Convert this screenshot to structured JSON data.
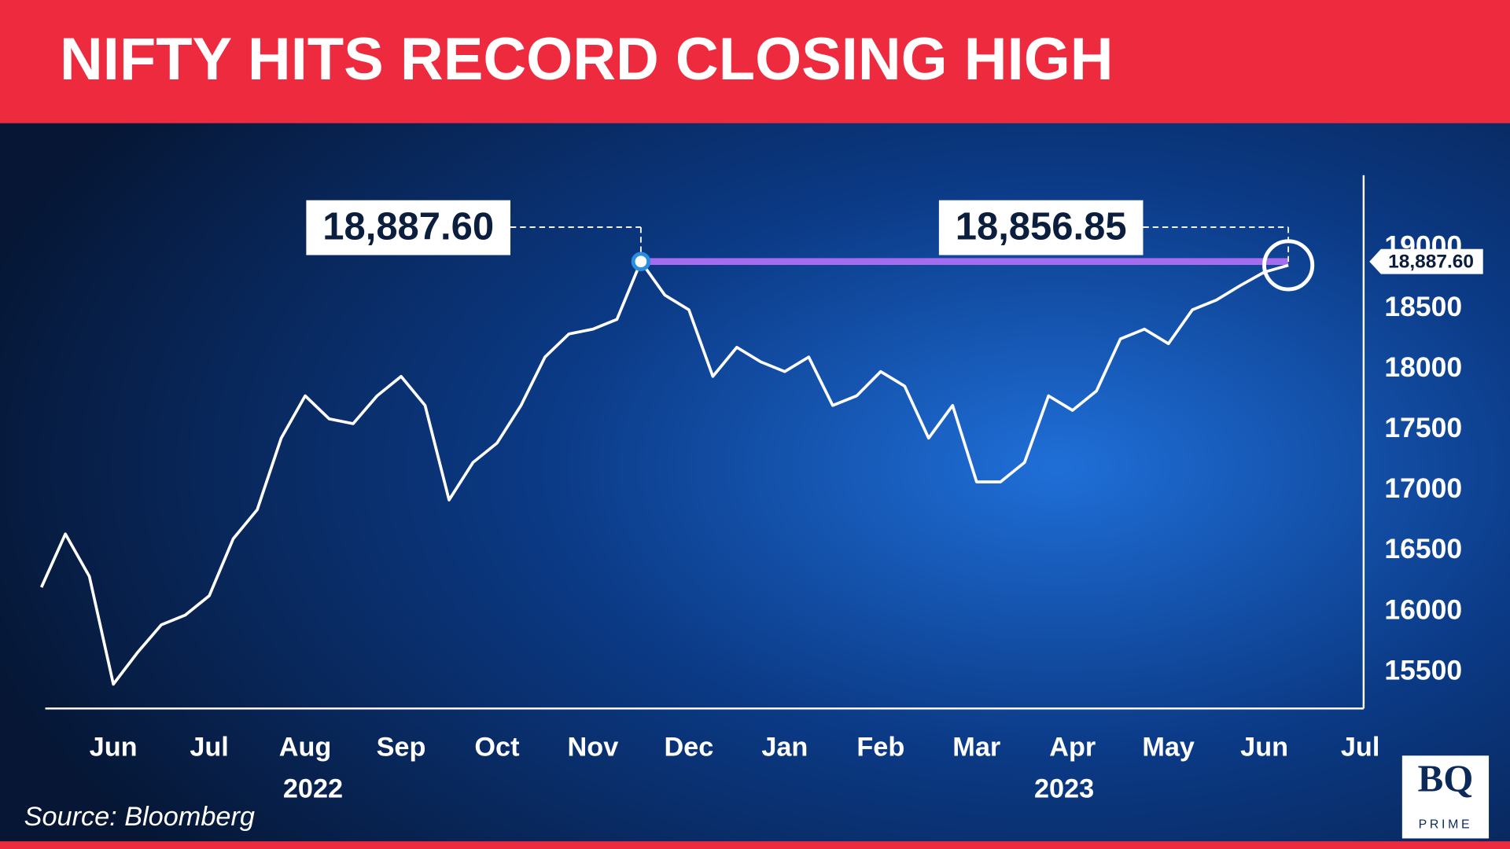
{
  "chart_data": {
    "type": "line",
    "title": "NIFTY HITS RECORD CLOSING HIGH",
    "categories": [
      null,
      null,
      null,
      "Jun",
      null,
      null,
      null,
      "Jul",
      null,
      null,
      null,
      "Aug",
      null,
      null,
      null,
      "Sep",
      null,
      null,
      null,
      "Oct",
      null,
      null,
      null,
      "Nov",
      null,
      null,
      null,
      "Dec",
      null,
      null,
      null,
      "Jan",
      null,
      null,
      null,
      "Feb",
      null,
      null,
      null,
      "Mar",
      null,
      null,
      null,
      "Apr",
      null,
      null,
      null,
      "May",
      null,
      null,
      null,
      "Jun",
      null,
      null,
      null,
      "Jul"
    ],
    "series": [
      {
        "color": "#ffffff",
        "values": [
          16200,
          16640,
          16290,
          15400,
          15660,
          15890,
          15970,
          16130,
          16600,
          16840,
          17430,
          17780,
          17590,
          17550,
          17780,
          17940,
          17700,
          16920,
          17230,
          17390,
          17700,
          18100,
          18290,
          18330,
          18410,
          18887.6,
          18610,
          18490,
          17940,
          18180,
          18060,
          17980,
          18100,
          17700,
          17780,
          17980,
          17860,
          17430,
          17700,
          17070,
          17070,
          17230,
          17780,
          17660,
          17820,
          18250,
          18330,
          18210,
          18490,
          18570,
          18690,
          18800,
          18856.85,
          null,
          null,
          null
        ],
        "value_labels": [
          null,
          null,
          null,
          null,
          null,
          null,
          null,
          null,
          null,
          null,
          null,
          null,
          null,
          null,
          null,
          null,
          null,
          null,
          null,
          null,
          null,
          null,
          null,
          null,
          null,
          "18,887.60",
          null,
          null,
          null,
          null,
          null,
          null,
          null,
          null,
          null,
          null,
          null,
          null,
          null,
          null,
          null,
          null,
          null,
          null,
          null,
          null,
          null,
          null,
          null,
          null,
          null,
          null,
          "18,856.85",
          null,
          null,
          null
        ]
      }
    ],
    "ylim": [
      15200,
      19600
    ],
    "yticks": [
      15500,
      16000,
      16500,
      17000,
      17500,
      18000,
      18500,
      19000
    ],
    "year_labels": [
      "2022",
      "2023"
    ],
    "reference": {
      "value": 18887.6,
      "label": "18,887.60",
      "color": "#a66cf0"
    },
    "source": "Source: Bloomberg"
  },
  "brand": {
    "name": "BQ",
    "sub": "PRIME"
  }
}
